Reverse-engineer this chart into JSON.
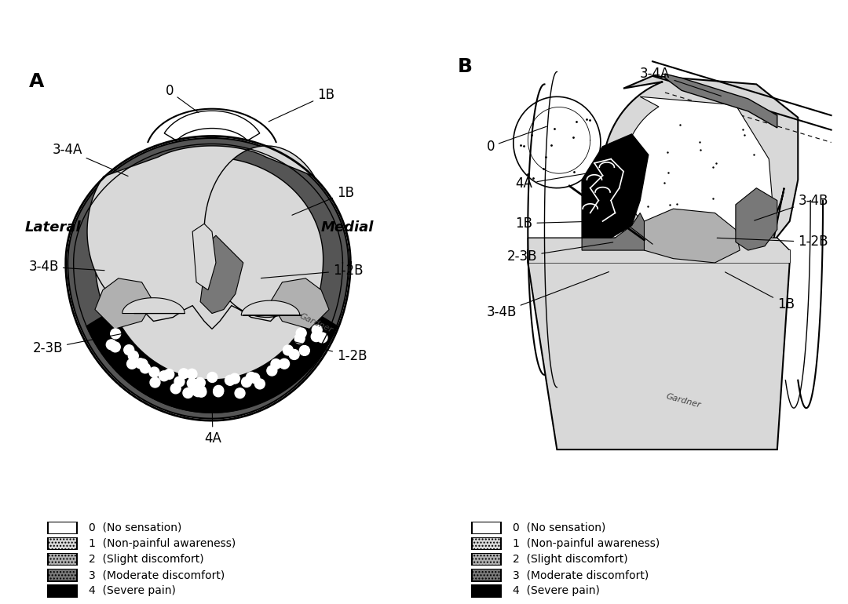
{
  "bg_color": "white",
  "label_fontsize": 13,
  "title_fontsize": 18,
  "annotation_fontsize": 12,
  "legend_items": [
    {
      "label": "0  (No sensation)",
      "fc": "white",
      "ec": "black",
      "hatch": ""
    },
    {
      "label": "1  (Non-painful awareness)",
      "fc": "#e8e8e8",
      "ec": "black",
      "hatch": "...."
    },
    {
      "label": "2  (Slight discomfort)",
      "fc": "#bbbbbb",
      "ec": "black",
      "hatch": "...."
    },
    {
      "label": "3  (Moderate discomfort)",
      "fc": "#888888",
      "ec": "black",
      "hatch": "...."
    },
    {
      "label": "4  (Severe pain)",
      "fc": "black",
      "ec": "black",
      "hatch": ""
    }
  ],
  "color_0": "white",
  "color_1": "#d8d8d8",
  "color_2": "#b0b0b0",
  "color_3": "#787878",
  "color_3dark": "#555555",
  "color_4": "black"
}
